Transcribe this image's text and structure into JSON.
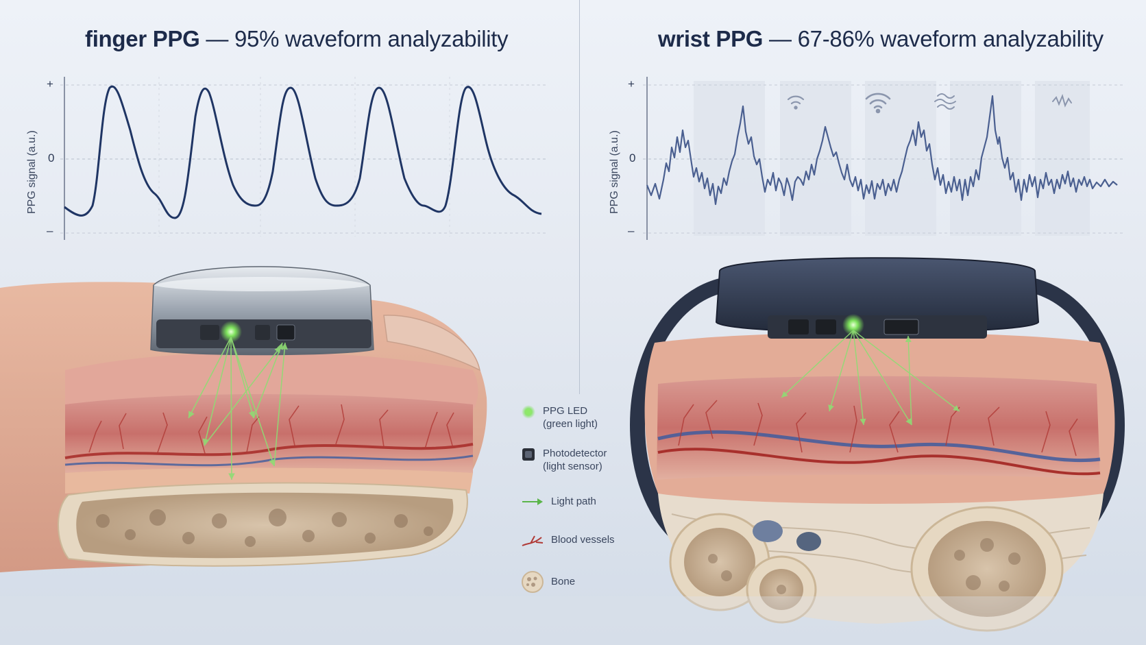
{
  "panels": {
    "finger": {
      "title_bold": "finger PPG",
      "title_rest": " — 95% waveform analyzability",
      "ylabel": "PPG signal (a.u.)",
      "ticks": [
        "+",
        "0",
        "–"
      ]
    },
    "wrist": {
      "title_bold": "wrist PPG",
      "title_rest": " — 67-86% waveform analyzability",
      "ylabel": "PPG signal (a.u.)",
      "ticks": [
        "+",
        "0",
        "–"
      ]
    }
  },
  "legend": [
    {
      "icon": "green-led-icon",
      "line1": "PPG LED",
      "line2": "(green light)"
    },
    {
      "icon": "photodetector-icon",
      "line1": "Photodetector",
      "line2": "(light sensor)"
    },
    {
      "icon": "arrow-icon",
      "line1": "Light path",
      "line2": ""
    },
    {
      "icon": "blood-vessel-icon",
      "line1": "Blood vessels",
      "line2": ""
    },
    {
      "icon": "bone-icon",
      "line1": "Bone",
      "line2": ""
    }
  ],
  "colors": {
    "waveform_clean": "#1f3564",
    "waveform_noisy": "#4a5f90",
    "light_green": "#74d85a",
    "vessel_red": "#b83a35",
    "vein_blue": "#3f5c9d"
  }
}
